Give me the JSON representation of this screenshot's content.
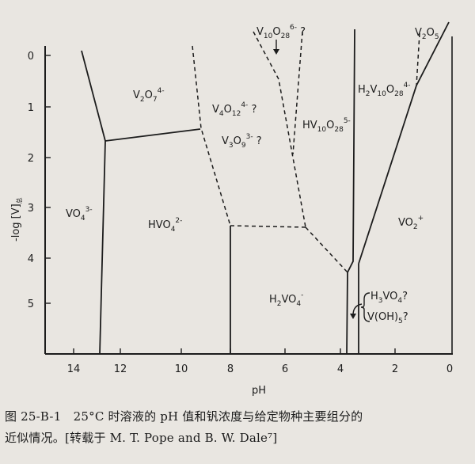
{
  "diagram": {
    "y_axis_label": "-log [V]",
    "y_axis_label_suffix": "总",
    "x_axis_label": "pH",
    "y_ticks": [
      "0",
      "1",
      "2",
      "3",
      "4",
      "5"
    ],
    "x_ticks": [
      "14",
      "12",
      "10",
      "8",
      "6",
      "4",
      "2",
      "0"
    ],
    "species": {
      "v2o7": {
        "base": "V",
        "s1": "2",
        "mid": "O",
        "s2": "7",
        "charge": "4-"
      },
      "v4o12": {
        "base": "V",
        "s1": "4",
        "mid": "O",
        "s2": "12",
        "charge": "4-",
        "tail": " ?"
      },
      "v3o9": {
        "base": "V",
        "s1": "3",
        "mid": "O",
        "s2": "9",
        "charge": "3-",
        "tail": " ?"
      },
      "v10o28": {
        "base": "V",
        "s1": "10",
        "mid": "O",
        "s2": "28",
        "charge": "6-",
        "tail": " ?"
      },
      "hv10o28": {
        "base": "HV",
        "s1": "10",
        "mid": "O",
        "s2": "28",
        "charge": "5-"
      },
      "h2v10o28": {
        "base": "H",
        "s1": "2",
        "mid": "V",
        "s2": "10",
        "mid2": "O",
        "s3": "28",
        "charge": "4-"
      },
      "v2o5": {
        "base": "V",
        "s1": "2",
        "mid": "O",
        "s2": "5"
      },
      "vo4": {
        "base": "VO",
        "s1": "4",
        "charge": "3-"
      },
      "hvo4": {
        "base": "HVO",
        "s1": "4",
        "charge": "2-"
      },
      "h2vo4": {
        "base": "H",
        "s1": "2",
        "mid": "VO",
        "s2": "4",
        "charge": "-"
      },
      "vo2": {
        "base": "VO",
        "s1": "2",
        "charge": "+"
      },
      "h3vo4": {
        "base": "H",
        "s1": "3",
        "mid": "VO",
        "s2": "4",
        "tail": "?"
      },
      "voh5": {
        "base": "V(OH)",
        "s1": "5",
        "tail": "?"
      }
    }
  },
  "caption": {
    "line1": "图 25-B-1　25°C 时溶液的 pH 值和钒浓度与给定物种主要组分的",
    "line2": "近似情况。[转载于 M. T. Pope and B. W. Dale⁷]"
  }
}
